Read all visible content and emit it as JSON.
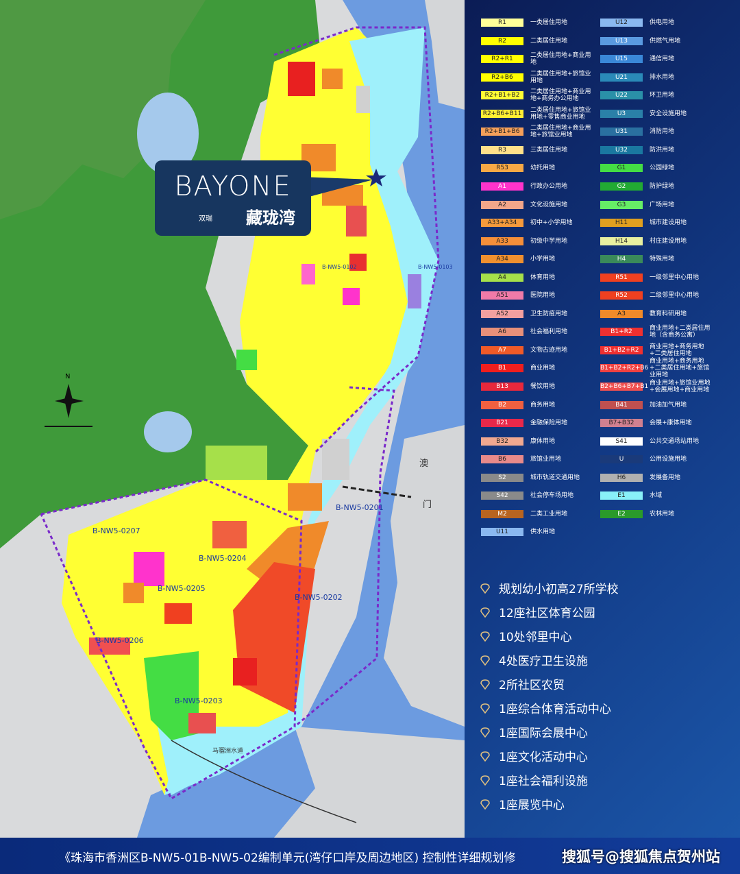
{
  "logo": {
    "brand": "BAYONE",
    "sub": "双瑞",
    "name": "藏珑湾"
  },
  "map_labels": [
    "B-NW5-0207",
    "B-NW5-0204",
    "B-NW5-0205",
    "B-NW5-0206",
    "B-NW5-0203",
    "B-NW5-0202",
    "B-NW5-0201",
    "B-NW5-0103",
    "B-NW5-0102",
    "澳",
    "门",
    "马骝洲水道",
    "N"
  ],
  "legend": {
    "left": [
      {
        "code": "R1",
        "label": "一类居住用地",
        "color": "#ffff99"
      },
      {
        "code": "R2",
        "label": "二类居住用地",
        "color": "#ffff00"
      },
      {
        "code": "R2+R1",
        "label": "二类居住用地+商业用地",
        "color": "#ffff00"
      },
      {
        "code": "R2+B6",
        "label": "二类居住用地+旅馆业用地",
        "color": "#ffff00"
      },
      {
        "code": "R2+B1+B2",
        "label": "二类居住用地+商业用地+商务办公用地",
        "color": "#ffff33"
      },
      {
        "code": "R2+B6+B11",
        "label": "二类居住用地+旅馆业用地+零售商业用地",
        "color": "#ffee33"
      },
      {
        "code": "R2+B1+B6",
        "label": "二类居住用地+商业用地+旅馆业用地",
        "color": "#f5a05a"
      },
      {
        "code": "R3",
        "label": "三类居住用地",
        "color": "#ffe08a"
      },
      {
        "code": "R53",
        "label": "幼托用地",
        "color": "#f7a845"
      },
      {
        "code": "A1",
        "label": "行政办公用地",
        "color": "#ff33cc"
      },
      {
        "code": "A2",
        "label": "文化设施用地",
        "color": "#f2a68a"
      },
      {
        "code": "A33+A34",
        "label": "初中+小学用地",
        "color": "#f59a3c"
      },
      {
        "code": "A33",
        "label": "初级中学用地",
        "color": "#f58f3a"
      },
      {
        "code": "A34",
        "label": "小学用地",
        "color": "#f0902f"
      },
      {
        "code": "A4",
        "label": "体育用地",
        "color": "#a6e04a"
      },
      {
        "code": "A51",
        "label": "医院用地",
        "color": "#f07aa8"
      },
      {
        "code": "A52",
        "label": "卫生防疫用地",
        "color": "#f2a0a0"
      },
      {
        "code": "A6",
        "label": "社会福利用地",
        "color": "#e8907a"
      },
      {
        "code": "A7",
        "label": "文物古迹用地",
        "color": "#f05a28"
      },
      {
        "code": "B1",
        "label": "商业用地",
        "color": "#f01e1e"
      },
      {
        "code": "B13",
        "label": "餐饮用地",
        "color": "#e8283c"
      },
      {
        "code": "B2",
        "label": "商务用地",
        "color": "#f06040"
      },
      {
        "code": "B21",
        "label": "金融保险用地",
        "color": "#e8284a"
      },
      {
        "code": "B32",
        "label": "康体用地",
        "color": "#f0a890"
      },
      {
        "code": "B6",
        "label": "旅馆业用地",
        "color": "#e88a8a"
      },
      {
        "code": "S2",
        "label": "城市轨道交通用地",
        "color": "#8a8a8a"
      },
      {
        "code": "S42",
        "label": "社会停车场用地",
        "color": "#8a8a8a"
      },
      {
        "code": "M2",
        "label": "二类工业用地",
        "color": "#b86420"
      },
      {
        "code": "U11",
        "label": "供水用地",
        "color": "#8ab8f0"
      }
    ],
    "right": [
      {
        "code": "U12",
        "label": "供电用地",
        "color": "#8ab8f0"
      },
      {
        "code": "U13",
        "label": "供燃气用地",
        "color": "#5a9ae0"
      },
      {
        "code": "U15",
        "label": "通信用地",
        "color": "#3a88d8"
      },
      {
        "code": "U21",
        "label": "排水用地",
        "color": "#2a8ab8"
      },
      {
        "code": "U22",
        "label": "环卫用地",
        "color": "#2a90a8"
      },
      {
        "code": "U3",
        "label": "安全设施用地",
        "color": "#2a80a8"
      },
      {
        "code": "U31",
        "label": "消防用地",
        "color": "#2a70a0"
      },
      {
        "code": "U32",
        "label": "防洪用地",
        "color": "#1a78a0"
      },
      {
        "code": "G1",
        "label": "公园绿地",
        "color": "#44dd44"
      },
      {
        "code": "G2",
        "label": "防护绿地",
        "color": "#22aa33"
      },
      {
        "code": "G3",
        "label": "广场用地",
        "color": "#66ee66"
      },
      {
        "code": "H11",
        "label": "城市建设用地",
        "color": "#e0a020"
      },
      {
        "code": "H14",
        "label": "村庄建设用地",
        "color": "#e8f0a0"
      },
      {
        "code": "H4",
        "label": "特殊用地",
        "color": "#3a8a5a"
      },
      {
        "code": "R51",
        "label": "一级邻里中心用地",
        "color": "#f04020"
      },
      {
        "code": "R52",
        "label": "二级邻里中心用地",
        "color": "#f04020"
      },
      {
        "code": "A3",
        "label": "教育科研用地",
        "color": "#f08a2a"
      },
      {
        "code": "B1+R2",
        "label": "商业用地+二类居住用地（含商务公寓）",
        "color": "#f03030"
      },
      {
        "code": "B1+B2+R2",
        "label": "商业用地+商务用地+二类居住用地",
        "color": "#f03030"
      },
      {
        "code": "B1+B2+R2+B6",
        "label": "商业用地+商务用地+二类居住用地+旅馆业用地",
        "color": "#f04040"
      },
      {
        "code": "B2+B6+B7+B1",
        "label": "商业用地+旅馆业用地+会展用地+商业用地",
        "color": "#f05050"
      },
      {
        "code": "B41",
        "label": "加油加气用地",
        "color": "#c05050"
      },
      {
        "code": "B7+B32",
        "label": "会展+康体用地",
        "color": "#d08090"
      },
      {
        "code": "S41",
        "label": "公共交通场站用地",
        "color": "#ffffff"
      },
      {
        "code": "U",
        "label": "公用设施用地",
        "color": "#1a3a7a"
      },
      {
        "code": "H6",
        "label": "发展备用地",
        "color": "#b0b0b0"
      },
      {
        "code": "E1",
        "label": "水域",
        "color": "#88f0f8"
      },
      {
        "code": "E2",
        "label": "农林用地",
        "color": "#2a9a2a"
      }
    ]
  },
  "highlights": [
    "规划幼小初高27所学校",
    "12座社区体育公园",
    "10处邻里中心",
    "4处医疗卫生设施",
    "2所社区农贸",
    "1座综合体育活动中心",
    "1座国际会展中心",
    "1座文化活动中心",
    "1座社会福利设施",
    "1座展览中心"
  ],
  "footer": {
    "title": "《珠海市香洲区B-NW5-01B-NW5-02编制单元(湾仔口岸及周边地区) 控制性详细规划修",
    "watermark": "搜狐号@搜狐焦点贺州站"
  }
}
